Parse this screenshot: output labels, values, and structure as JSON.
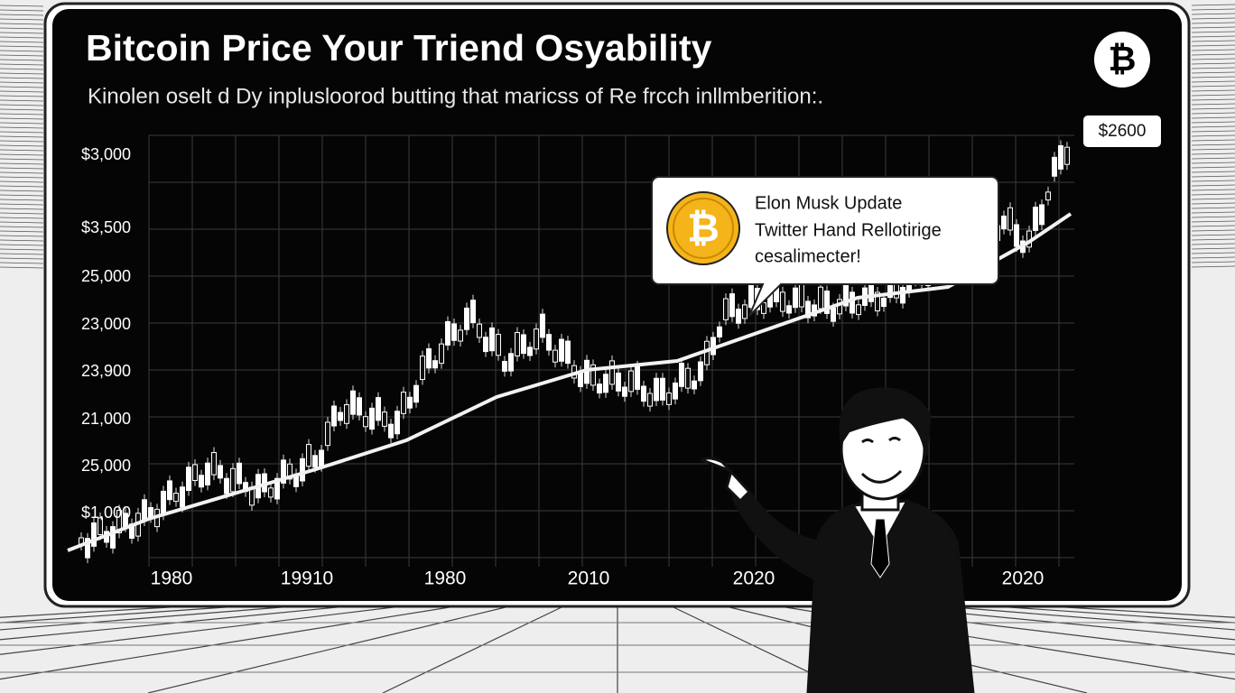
{
  "title": "Bitcoin Price Your Triend Osyability",
  "subtitle": "Kinolen oselt d Dy inplusloorod butting that maricss of Re frcch inllmberition:.",
  "y_axis_labels": [
    "$3,000",
    "$3,500",
    "25,000",
    "23,000",
    "23,900",
    "21,000",
    "25,000",
    "$1,000"
  ],
  "x_axis_labels": [
    "1980",
    "19910",
    "1980",
    "2010",
    "2020",
    "2020"
  ],
  "price_badge": "$2600",
  "logo_symbol": "₿",
  "callout": {
    "title": "Elon Musk Update",
    "lines": [
      "Twitter Hand Rellotirige",
      "cesalimecter!"
    ]
  }
}
